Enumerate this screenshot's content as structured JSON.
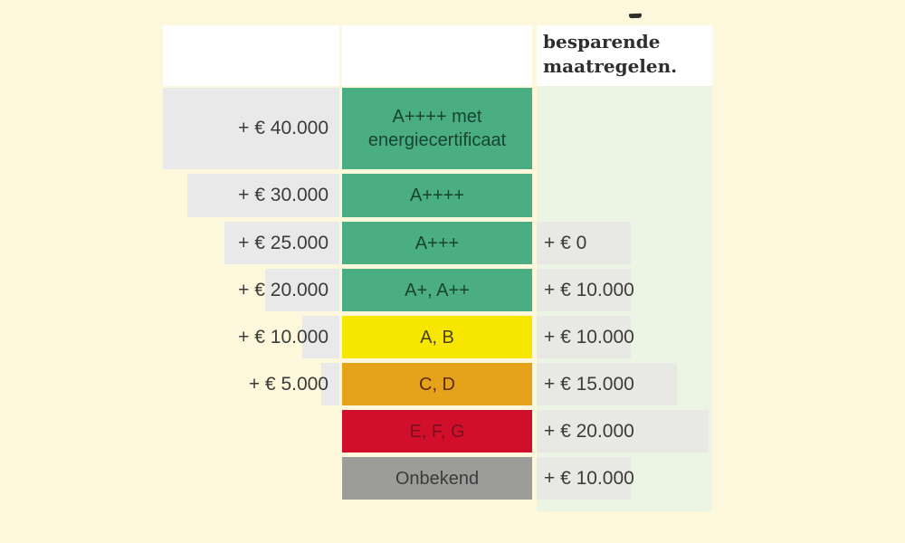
{
  "page": {
    "background_color": "#FDF8DC",
    "right_column_background": "#ECF4E4",
    "left_bar_color": "#E9E9E9",
    "right_bar_color": "#E8E9E5",
    "text_color": "#3B3B3A"
  },
  "header": {
    "line1": "besparende",
    "line2": "maatregelen."
  },
  "rows": [
    {
      "label": "A++++ met energiecertificaat",
      "left_value": "+ € 40.000",
      "right_value": "",
      "color": "#4BAE82"
    },
    {
      "label": "A++++",
      "left_value": "+ € 30.000",
      "right_value": "",
      "color": "#4BAE82"
    },
    {
      "label": "A+++",
      "left_value": "+ € 25.000",
      "right_value": "+ € 0",
      "color": "#4BAE82"
    },
    {
      "label": "A+, A++",
      "left_value": "+ € 20.000",
      "right_value": "+ € 10.000",
      "color": "#4BAE82"
    },
    {
      "label": "A, B",
      "left_value": "+ € 10.000",
      "right_value": "+ € 10.000",
      "color": "#F7E700"
    },
    {
      "label": "C, D",
      "left_value": "+ € 5.000",
      "right_value": "+ € 15.000",
      "color": "#E5A31C"
    },
    {
      "label": "E, F, G",
      "left_value": "",
      "right_value": "+ € 20.000",
      "color": "#D20F2B"
    },
    {
      "label": "Onbekend",
      "left_value": "",
      "right_value": "+ € 10.000",
      "color": "#9C9C9B"
    }
  ],
  "chart_data": {
    "type": "bar",
    "orientation": "horizontal",
    "header_partial": "besparende maatregelen.",
    "categories": [
      "A++++ met energiecertificaat",
      "A++++",
      "A+++",
      "A+, A++",
      "A, B",
      "C, D",
      "E, F, G",
      "Onbekend"
    ],
    "series": [
      {
        "name": "left-column",
        "values": [
          40000,
          30000,
          25000,
          20000,
          10000,
          5000,
          null,
          null
        ]
      },
      {
        "name": "besparende maatregelen",
        "values": [
          null,
          null,
          0,
          10000,
          10000,
          15000,
          20000,
          10000
        ]
      }
    ],
    "value_labels_left": [
      "+ € 40.000",
      "+ € 30.000",
      "+ € 25.000",
      "+ € 20.000",
      "+ € 10.000",
      "+ € 5.000",
      "",
      ""
    ],
    "value_labels_right": [
      "",
      "",
      "+ € 0",
      "+ € 10.000",
      "+ € 10.000",
      "+ € 15.000",
      "+ € 20.000",
      "+ € 10.000"
    ],
    "bar_colors": [
      "#4BAE82",
      "#4BAE82",
      "#4BAE82",
      "#4BAE82",
      "#F7E700",
      "#E5A31C",
      "#D20F2B",
      "#9C9C9B"
    ],
    "legend_position": "none",
    "grid": false
  }
}
